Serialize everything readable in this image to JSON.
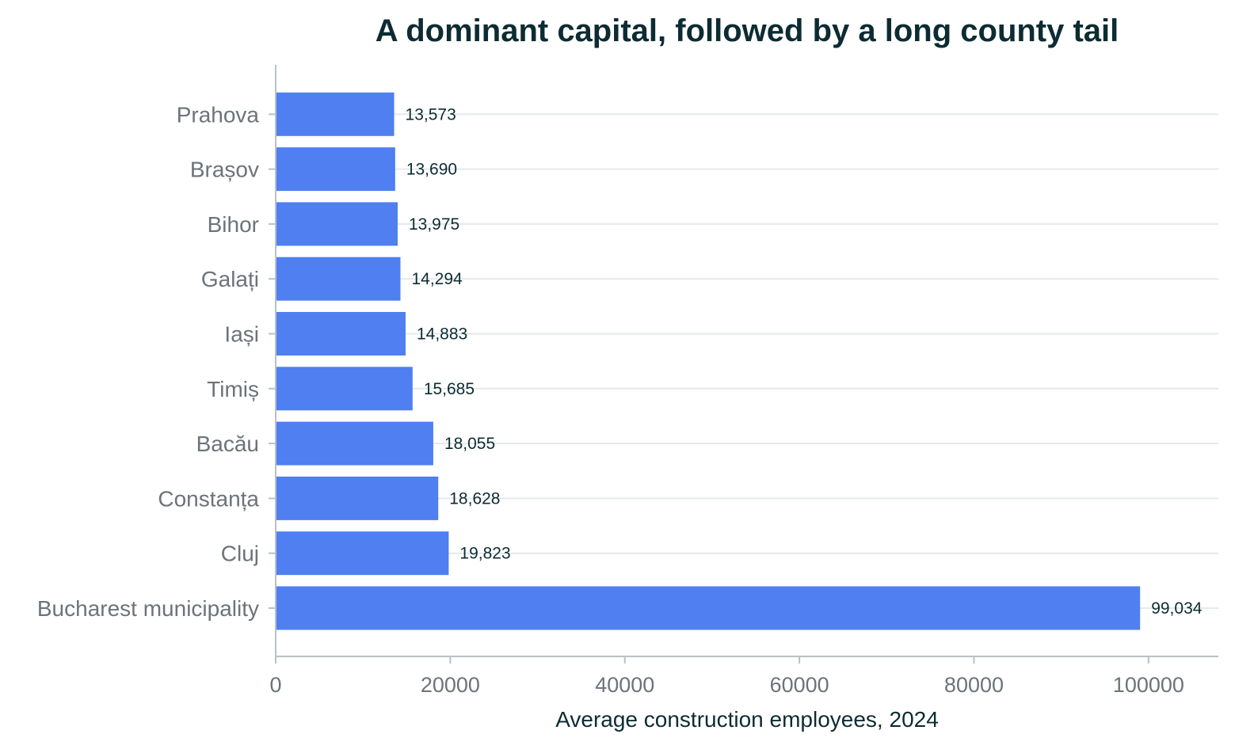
{
  "chart_data": {
    "type": "bar",
    "orientation": "horizontal",
    "title": "A dominant capital, followed by a long county tail",
    "xlabel": "Average construction employees, 2024",
    "ylabel": "",
    "categories": [
      "Bucharest municipality",
      "Cluj",
      "Constanța",
      "Bacău",
      "Timiș",
      "Iași",
      "Galați",
      "Bihor",
      "Brașov",
      "Prahova"
    ],
    "values": [
      99034,
      19823,
      18628,
      18055,
      15685,
      14883,
      14294,
      13975,
      13690,
      13573
    ],
    "value_labels": [
      "99,034",
      "19,823",
      "18,628",
      "18,055",
      "15,685",
      "14,883",
      "14,294",
      "13,975",
      "13,690",
      "13,573"
    ],
    "xlim": [
      0,
      108000
    ],
    "x_ticks": [
      0,
      20000,
      40000,
      60000,
      80000,
      100000
    ],
    "x_tick_labels": [
      "0",
      "20000",
      "40000",
      "60000",
      "80000",
      "100000"
    ],
    "grid": "horizontal lines at category centers",
    "legend": "none",
    "colors": {
      "bar": "#4f7ff0",
      "grid": "#e4eaea",
      "axis": "#b8c1c6",
      "title": "#0d2b33",
      "tick_label": "#6b7479",
      "data_label": "#0d2b33",
      "axis_title": "#0d2b33"
    }
  }
}
